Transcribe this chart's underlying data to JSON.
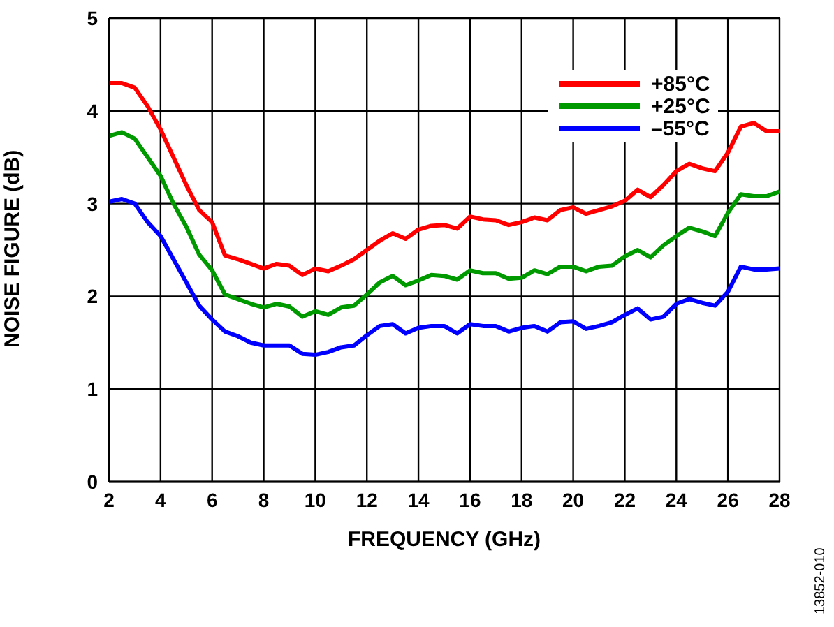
{
  "chart_data": {
    "type": "line",
    "xlabel": "FREQUENCY (GHz)",
    "ylabel": "NOISE FIGURE (dB)",
    "x": [
      2,
      2.5,
      3,
      3.5,
      4,
      4.5,
      5,
      5.5,
      6,
      6.5,
      7,
      7.5,
      8,
      8.5,
      9,
      9.5,
      10,
      10.5,
      11,
      11.5,
      12,
      12.5,
      13,
      13.5,
      14,
      14.5,
      15,
      15.5,
      16,
      16.5,
      17,
      17.5,
      18,
      18.5,
      19,
      19.5,
      20,
      20.5,
      21,
      21.5,
      22,
      22.5,
      23,
      23.5,
      24,
      24.5,
      25,
      25.5,
      26,
      26.5,
      27,
      27.5,
      28
    ],
    "series": [
      {
        "name": "+85°C",
        "color": "#ff0000",
        "values": [
          4.3,
          4.3,
          4.25,
          4.05,
          3.8,
          3.5,
          3.2,
          2.93,
          2.8,
          2.44,
          2.4,
          2.35,
          2.3,
          2.35,
          2.33,
          2.23,
          2.3,
          2.27,
          2.33,
          2.4,
          2.5,
          2.6,
          2.68,
          2.62,
          2.72,
          2.76,
          2.77,
          2.73,
          2.86,
          2.83,
          2.82,
          2.77,
          2.8,
          2.85,
          2.82,
          2.93,
          2.96,
          2.89,
          2.93,
          2.97,
          3.03,
          3.15,
          3.07,
          3.2,
          3.35,
          3.43,
          3.38,
          3.35,
          3.55,
          3.83,
          3.87,
          3.78,
          3.78
        ]
      },
      {
        "name": "+25°C",
        "color": "#009900",
        "values": [
          3.73,
          3.77,
          3.7,
          3.5,
          3.3,
          3.0,
          2.75,
          2.45,
          2.28,
          2.02,
          1.97,
          1.92,
          1.88,
          1.92,
          1.89,
          1.78,
          1.84,
          1.8,
          1.88,
          1.9,
          2.02,
          2.15,
          2.22,
          2.12,
          2.17,
          2.23,
          2.22,
          2.18,
          2.28,
          2.25,
          2.25,
          2.19,
          2.2,
          2.28,
          2.24,
          2.32,
          2.32,
          2.27,
          2.32,
          2.33,
          2.43,
          2.5,
          2.42,
          2.55,
          2.65,
          2.74,
          2.7,
          2.65,
          2.9,
          3.1,
          3.08,
          3.08,
          3.13
        ]
      },
      {
        "name": "–55°C",
        "color": "#0000ff",
        "values": [
          3.02,
          3.05,
          3.0,
          2.8,
          2.65,
          2.4,
          2.15,
          1.9,
          1.75,
          1.62,
          1.57,
          1.5,
          1.47,
          1.47,
          1.47,
          1.38,
          1.37,
          1.4,
          1.45,
          1.47,
          1.58,
          1.68,
          1.7,
          1.6,
          1.66,
          1.68,
          1.68,
          1.6,
          1.7,
          1.68,
          1.68,
          1.62,
          1.66,
          1.68,
          1.62,
          1.72,
          1.73,
          1.65,
          1.68,
          1.72,
          1.8,
          1.87,
          1.75,
          1.78,
          1.92,
          1.97,
          1.93,
          1.9,
          2.05,
          2.32,
          2.29,
          2.29,
          2.3
        ]
      }
    ],
    "xlim": [
      2,
      28
    ],
    "xticks": [
      2,
      4,
      6,
      8,
      10,
      12,
      14,
      16,
      18,
      20,
      22,
      24,
      26,
      28
    ],
    "ylim": [
      0,
      5
    ],
    "yticks": [
      0,
      1,
      2,
      3,
      4,
      5
    ],
    "grid": true,
    "legend": "top right",
    "marker": "none",
    "line_style": "solid",
    "annotations": [
      "13852-010"
    ]
  }
}
